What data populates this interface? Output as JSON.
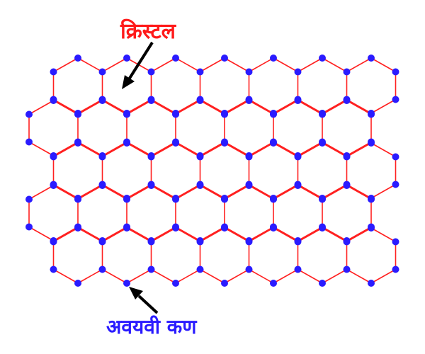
{
  "labels": {
    "crystal": "क्रिस्टल",
    "particle": "अवयवी कण"
  },
  "colors": {
    "edge": "#ff2020",
    "vertex": "#2a1bff",
    "crystal_label": "#ff1a1a",
    "particle_label": "#2a1bff",
    "arrow": "#000000"
  },
  "lattice": {
    "hexagon_rows": 5,
    "hexagons_per_row": [
      7,
      7,
      7,
      7,
      7
    ]
  }
}
